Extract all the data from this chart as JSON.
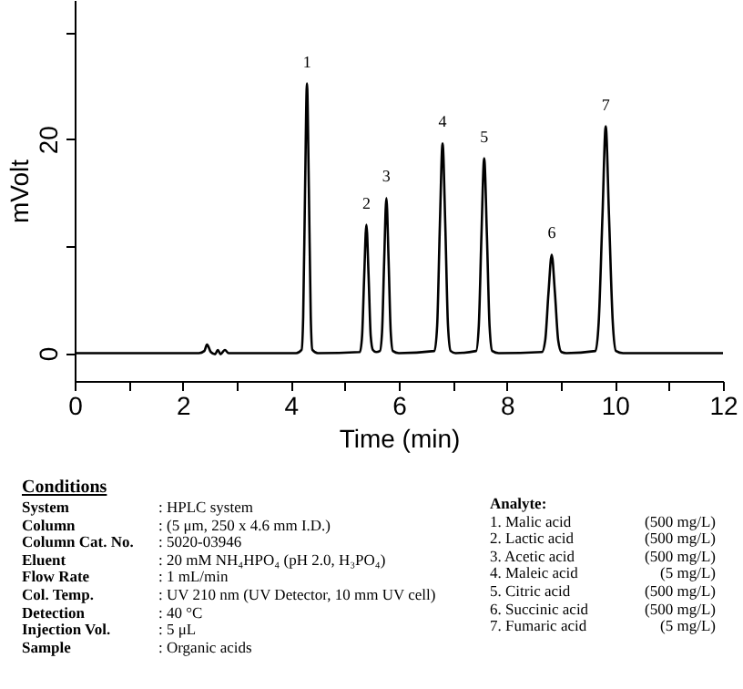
{
  "chart_data": {
    "type": "line",
    "xlabel": "Time (min)",
    "ylabel": "mVolt",
    "xlim": [
      0,
      12
    ],
    "xticks": [
      0,
      {
        "value": 1,
        "label": null
      },
      2,
      {
        "value": 3,
        "label": null
      },
      4,
      {
        "value": 5,
        "label": null
      },
      6,
      {
        "value": 7,
        "label": null
      },
      8,
      {
        "value": 9,
        "label": null
      },
      10,
      {
        "value": 11,
        "label": null
      },
      12
    ],
    "ylim": [
      -2.6,
      33
    ],
    "yticks": [
      0,
      {
        "value": 10,
        "label": null
      },
      20,
      {
        "value": 30,
        "label": null
      }
    ],
    "grid": false,
    "marker": "none",
    "line_style": "solid",
    "series": [
      {
        "color": "#000000",
        "x": [
          0,
          2.3,
          2.4,
          2.45,
          2.52,
          2.6,
          2.65,
          2.7,
          2.78,
          2.85,
          4.1,
          4.2,
          4.23,
          4.265,
          4.3,
          4.335,
          4.37,
          4.4,
          4.5,
          5.28,
          5.32,
          5.36,
          5.4,
          5.44,
          5.48,
          5.52,
          5.58,
          5.65,
          5.69,
          5.73,
          5.77,
          5.81,
          5.85,
          5.89,
          6.0,
          6.66,
          6.71,
          6.76,
          6.81,
          6.86,
          6.91,
          6.96,
          7.05,
          7.43,
          7.48,
          7.53,
          7.58,
          7.63,
          7.68,
          7.73,
          7.85,
          8.65,
          8.71,
          8.77,
          8.83,
          8.89,
          8.95,
          9.01,
          9.1,
          9.64,
          9.7,
          9.77,
          9.83,
          9.89,
          9.96,
          10.02,
          10.15,
          12
        ],
        "values": [
          0,
          0,
          0.2,
          0.8,
          0.1,
          -0.1,
          0.3,
          -0.1,
          0.3,
          0,
          0,
          0.3,
          3.4,
          15.4,
          25.2,
          15.4,
          3.4,
          0.3,
          0,
          0.1,
          1.6,
          7.3,
          12.0,
          7.3,
          1.6,
          0.3,
          0.1,
          0.2,
          2.0,
          8.8,
          14.5,
          8.8,
          2.0,
          0.2,
          0,
          0.2,
          2.6,
          12.0,
          19.6,
          12.0,
          2.6,
          0.2,
          0,
          0.2,
          2.5,
          11.1,
          18.2,
          11.1,
          2.5,
          0.2,
          0,
          0.1,
          1.2,
          5.6,
          9.2,
          5.6,
          1.2,
          0.1,
          0,
          0.2,
          2.9,
          12.9,
          21.2,
          12.9,
          2.9,
          0.2,
          0,
          0
        ]
      }
    ],
    "annotations": [
      {
        "text": "1",
        "x": 4.3,
        "y": 25.2
      },
      {
        "text": "2",
        "x": 5.4,
        "y": 12.0
      },
      {
        "text": "3",
        "x": 5.77,
        "y": 14.5
      },
      {
        "text": "4",
        "x": 6.81,
        "y": 19.6
      },
      {
        "text": "5",
        "x": 7.58,
        "y": 18.2
      },
      {
        "text": "6",
        "x": 8.83,
        "y": 9.2
      },
      {
        "text": "7",
        "x": 9.83,
        "y": 21.2
      },
      "Conditions",
      "System : HPLC system",
      "Column : (5 μm, 250 x 4.6 mm I.D.)",
      "Column Cat. No. : 5020-03946",
      "Eluent : 20 mM NH₄HPO₄ (pH 2.0, H₃PO₄)",
      "Flow Rate : 1 mL/min",
      "Col. Temp. : UV 210 nm (UV Detector, 10 mm UV cell)",
      "Detection : 40 °C",
      "Injection Vol. : 5 μL",
      "Sample : Organic acids",
      "Analyte:",
      "1. Malic acid (500 mg/L)",
      "2. Lactic acid (500 mg/L)",
      "3. Acetic acid (500 mg/L)",
      "4. Maleic acid (5 mg/L)",
      "5. Citric acid (500 mg/L)",
      "6. Succinic acid (500 mg/L)",
      "7. Fumaric acid (5 mg/L)"
    ]
  }
}
